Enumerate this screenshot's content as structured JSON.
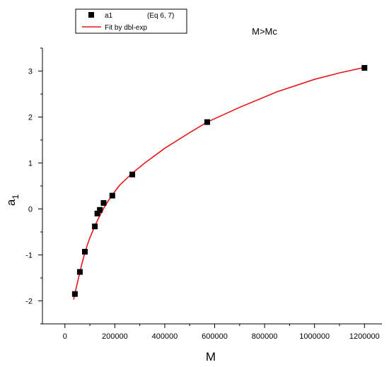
{
  "chart_data": {
    "type": "scatter",
    "title": "M>Mc",
    "xlabel": "M",
    "ylabel_main": "a",
    "ylabel_sub": "1",
    "xlim": [
      -90000,
      1270000
    ],
    "ylim": [
      -2.5,
      3.5
    ],
    "x_ticks": [
      0,
      200000,
      400000,
      600000,
      800000,
      1000000,
      1200000
    ],
    "x_tick_labels": [
      "0",
      "200000",
      "400000",
      "600000",
      "800000",
      "1000000",
      "1200000"
    ],
    "y_ticks": [
      -2,
      -1,
      0,
      1,
      2,
      3
    ],
    "y_tick_labels": [
      "-2",
      "-1",
      "0",
      "1",
      "2",
      "3"
    ],
    "grid": false,
    "legend_placement": "top-left",
    "legend": [
      {
        "label": "a1",
        "note": "(Eq 6, 7)",
        "marker": "square",
        "color": "#000000"
      },
      {
        "label": "Fit by dbl-exp",
        "marker": "line",
        "color": "#e8141e"
      }
    ],
    "series": [
      {
        "name": "a1",
        "kind": "points",
        "color": "#000000",
        "points": [
          [
            40000,
            -1.85
          ],
          [
            60000,
            -1.37
          ],
          [
            80000,
            -0.93
          ],
          [
            120000,
            -0.38
          ],
          [
            130000,
            -0.1
          ],
          [
            140000,
            -0.02
          ],
          [
            155000,
            0.13
          ],
          [
            190000,
            0.29
          ],
          [
            270000,
            0.75
          ],
          [
            570000,
            1.89
          ],
          [
            1200000,
            3.07
          ]
        ]
      },
      {
        "name": "Fit by dbl-exp",
        "kind": "line",
        "color": "#e8141e",
        "x": [
          35000,
          40000,
          50000,
          60000,
          70000,
          80000,
          90000,
          100000,
          120000,
          140000,
          160000,
          190000,
          220000,
          270000,
          320000,
          400000,
          500000,
          570000,
          700000,
          850000,
          1000000,
          1100000,
          1200000
        ],
        "y": [
          -1.97,
          -1.84,
          -1.61,
          -1.38,
          -1.15,
          -0.95,
          -0.78,
          -0.63,
          -0.37,
          -0.14,
          0.06,
          0.31,
          0.52,
          0.78,
          1.0,
          1.32,
          1.66,
          1.89,
          2.21,
          2.55,
          2.82,
          2.96,
          3.08
        ]
      }
    ]
  }
}
